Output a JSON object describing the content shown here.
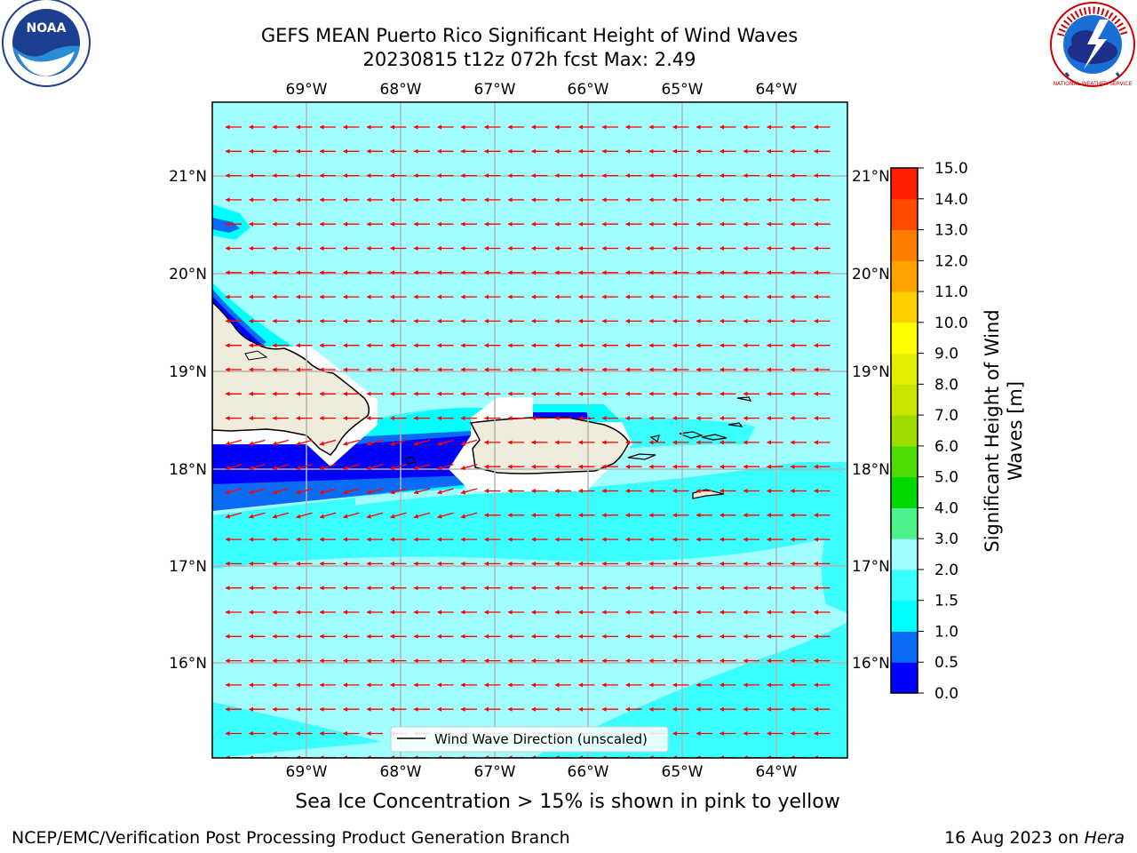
{
  "title": {
    "line1": "GEFS MEAN Puerto Rico Significant Height of Wind Waves",
    "line2": "20230815 t12z 072h fcst   Max: 2.49"
  },
  "map": {
    "lon_labels": [
      "69°W",
      "68°W",
      "67°W",
      "66°W",
      "65°W",
      "64°W"
    ],
    "lat_labels": [
      "21°N",
      "20°N",
      "19°N",
      "18°N",
      "17°N",
      "16°N"
    ],
    "legend_label": "Wind Wave Direction (unscaled)",
    "colors": {
      "land": "#efecdc",
      "band_0_5": "#0000ff",
      "band_0_5_1": "#0a6cf5",
      "band_1_1_5": "#00ffff",
      "band_1_5_2": "#3bfefe",
      "band_2_3": "#a2fefe",
      "arrow": "#ff0000"
    }
  },
  "colorbar": {
    "ticks": [
      "0.0",
      "0.5",
      "1.0",
      "1.5",
      "2.0",
      "3.0",
      "4.0",
      "5.0",
      "6.0",
      "7.0",
      "8.0",
      "9.0",
      "10.0",
      "11.0",
      "12.0",
      "13.0",
      "14.0",
      "15.0"
    ],
    "colors": [
      "#0000ff",
      "#0a6cf5",
      "#00ffff",
      "#3bfefe",
      "#a2fefe",
      "#4ef28a",
      "#00d900",
      "#4fdc00",
      "#9edc00",
      "#c8e600",
      "#e0ef00",
      "#ffff00",
      "#ffcf00",
      "#ffa200",
      "#ff7e00",
      "#ff4a00",
      "#ff2000"
    ],
    "label_line1": "Significant Height of Wind",
    "label_line2": "Waves [m]"
  },
  "caption": "Sea Ice Concentration > 15% is shown in pink to yellow",
  "footer": {
    "left": "NCEP/EMC/Verification Post Processing Product Generation Branch",
    "right_prefix": "16 Aug 2023 on ",
    "right_host": "Hera"
  },
  "logos": {
    "noaa_text": "NOAA",
    "nws_text": "NATIONAL WEATHER SERVICE"
  }
}
